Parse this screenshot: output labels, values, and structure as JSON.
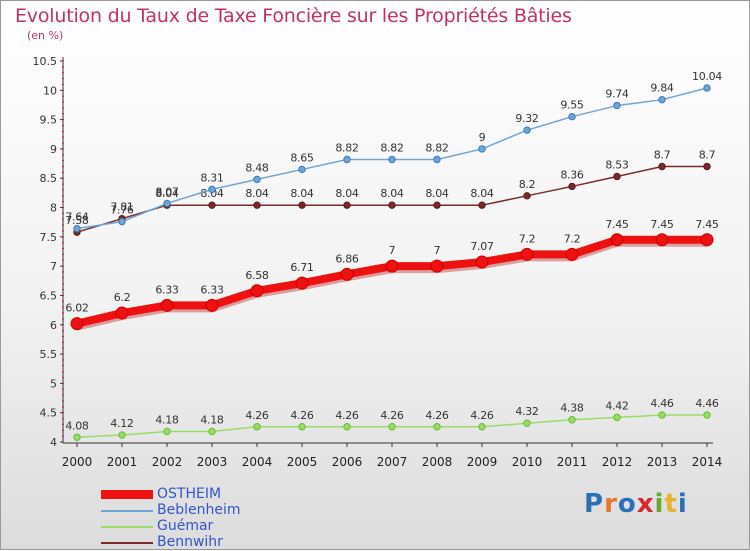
{
  "title": "Evolution du Taux de Taxe Foncière sur les Propriétés Bâties",
  "unit_label": "(en %)",
  "logo": {
    "text": "Proxiti",
    "colors": [
      "#2a6fb8",
      "#e8762c",
      "#2a6fb8",
      "#d9262c",
      "#6aa72a",
      "#e8b32c",
      "#2a6fb8"
    ]
  },
  "chart_data": {
    "type": "line",
    "title": "Evolution du Taux de Taxe Foncière sur les Propriétés Bâties",
    "ylabel": "(en %)",
    "xlabel": "",
    "x": [
      "2000",
      "2001",
      "2002",
      "2003",
      "2004",
      "2005",
      "2006",
      "2007",
      "2008",
      "2009",
      "2010",
      "2011",
      "2012",
      "2013",
      "2014"
    ],
    "ylim": [
      4,
      10.5
    ],
    "yticks": [
      "4",
      "4.5",
      "5",
      "5.5",
      "6",
      "6.5",
      "7",
      "7.5",
      "8",
      "8.5",
      "9",
      "9.5",
      "10",
      "10.5"
    ],
    "grid": false,
    "legend_position": "bottom-left",
    "series": [
      {
        "name": "OSTHEIM",
        "color": "#ee1111",
        "width": 8,
        "values": [
          6.02,
          6.2,
          6.33,
          6.33,
          6.58,
          6.71,
          6.86,
          7,
          7,
          7.07,
          7.2,
          7.2,
          7.45,
          7.45,
          7.45
        ],
        "labels": [
          "6.02",
          "6.2",
          "6.33",
          "6.33",
          "6.58",
          "6.71",
          "6.86",
          "7",
          "7",
          "7.07",
          "7.2",
          "7.2",
          "7.45",
          "7.45",
          "7.45"
        ]
      },
      {
        "name": "Beblenheim",
        "color": "#6fa6d6",
        "width": 1.5,
        "values": [
          7.64,
          7.76,
          8.07,
          8.31,
          8.48,
          8.65,
          8.82,
          8.82,
          8.82,
          9,
          9.32,
          9.55,
          9.74,
          9.84,
          10.04
        ],
        "labels": [
          "7.64",
          "7.76",
          "8.07",
          "8.31",
          "8.48",
          "8.65",
          "8.82",
          "8.82",
          "8.82",
          "9",
          "9.32",
          "9.55",
          "9.74",
          "9.84",
          "10.04"
        ]
      },
      {
        "name": "Guémar",
        "color": "#99dd66",
        "width": 1.5,
        "values": [
          4.08,
          4.12,
          4.18,
          4.18,
          4.26,
          4.26,
          4.26,
          4.26,
          4.26,
          4.26,
          4.32,
          4.38,
          4.42,
          4.46,
          4.46
        ],
        "labels": [
          "4.08",
          "4.12",
          "4.18",
          "4.18",
          "4.26",
          "4.26",
          "4.26",
          "4.26",
          "4.26",
          "4.26",
          "4.32",
          "4.38",
          "4.42",
          "4.46",
          "4.46"
        ]
      },
      {
        "name": "Bennwihr",
        "color": "#7a2a2a",
        "width": 1.5,
        "values": [
          7.58,
          7.81,
          8.04,
          8.04,
          8.04,
          8.04,
          8.04,
          8.04,
          8.04,
          8.04,
          8.2,
          8.36,
          8.53,
          8.7,
          8.7
        ],
        "labels": [
          "7.58",
          "7.81",
          "8.04",
          "8.04",
          "8.04",
          "8.04",
          "8.04",
          "8.04",
          "8.04",
          "8.04",
          "8.2",
          "8.36",
          "8.53",
          "8.7",
          "8.7"
        ]
      }
    ]
  }
}
